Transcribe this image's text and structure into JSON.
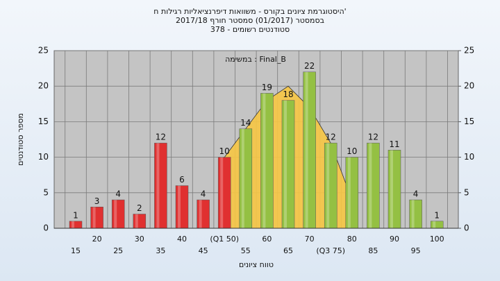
{
  "chart_data": {
    "type": "bar",
    "title": [
      "היסטוגרמת ציונים בקורס - משוואות דיפרנציאליות רגילות ח'",
      "בסמסטר  (01/2017)  סמסטר חורף 2017/18",
      "סטודנטים רשומים - 378"
    ],
    "annotation": "במשימה : Final_B",
    "x_label": "טווח ציונים",
    "y_label": "מספר סטודנטים",
    "categories": [
      "15",
      "20",
      "25",
      "30",
      "35",
      "40",
      "45",
      "(Q1 50)",
      "55",
      "60",
      "65",
      "70",
      "(Q3 75)",
      "80",
      "85",
      "90",
      "95",
      "100"
    ],
    "values": [
      1,
      3,
      4,
      2,
      12,
      6,
      4,
      10,
      14,
      19,
      18,
      22,
      12,
      10,
      12,
      11,
      4,
      1
    ],
    "colors": [
      "#e03030",
      "#e03030",
      "#e03030",
      "#e03030",
      "#e03030",
      "#e03030",
      "#e03030",
      "#e03030",
      "#94c043",
      "#94c043",
      "#94c043",
      "#94c043",
      "#94c043",
      "#94c043",
      "#94c043",
      "#94c043",
      "#94c043",
      "#94c043"
    ],
    "curve": {
      "color": "#f7c744",
      "values": [
        null,
        null,
        null,
        null,
        null,
        null,
        null,
        10,
        14,
        18,
        20,
        17,
        12,
        4,
        null,
        null,
        null,
        null
      ]
    },
    "ylim": [
      0,
      25
    ],
    "yticks": [
      0,
      5,
      10,
      15,
      20,
      25
    ],
    "y2lim": [
      0,
      25
    ],
    "y2ticks": [
      0,
      5,
      10,
      15,
      20,
      25
    ],
    "grid": true
  }
}
